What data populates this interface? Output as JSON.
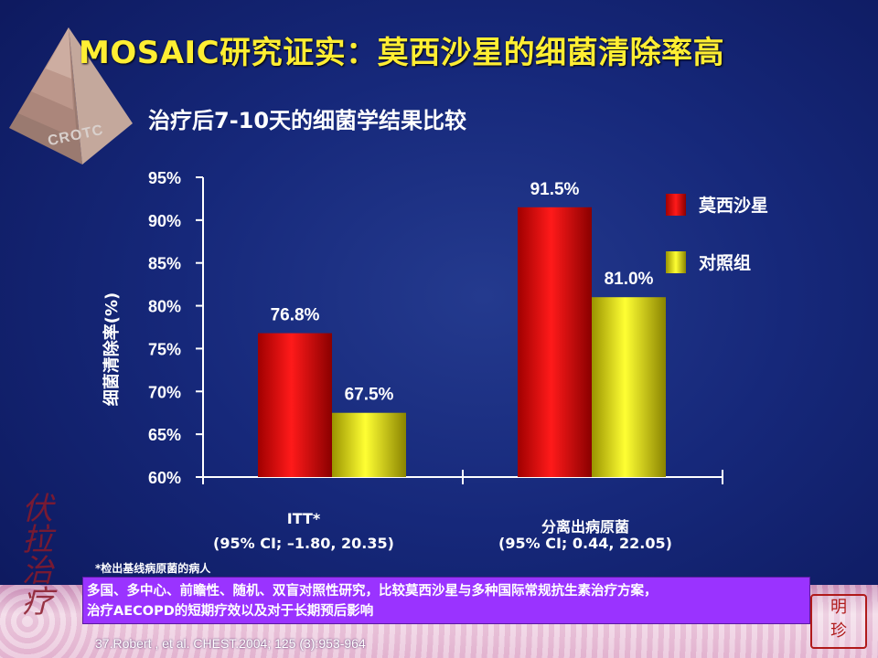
{
  "slide": {
    "title": "MOSAIC研究证实：莫西沙星的细菌清除率高",
    "logo_text": "CROTC",
    "footnote": "*检出基线病原菌的病人",
    "callout_line1": "多国、多中心、前瞻性、随机、双盲对照性研究，比较莫西沙星与多种国际常规抗生素治疗方案，",
    "callout_line2": "治疗AECOPD的短期疗效以及对于长期预后影响",
    "reference": "37.Robert , et al. CHEST.2004; 125 (3):953-964",
    "calligraphy": "伏\n拉\n治\n疗",
    "seal": "明\n珍"
  },
  "legend": {
    "series1": "莫西沙星",
    "series2": "对照组"
  },
  "colors": {
    "series1": "#e00000",
    "series2": "#e8e000",
    "title": "#ffee33",
    "callout": "#9a33ff"
  },
  "chart_data": {
    "type": "bar",
    "title": "治疗后7-10天的细菌学结果比较",
    "ylabel": "细菌清除率(%)",
    "ylim": [
      60,
      95
    ],
    "yticks": [
      "60%",
      "65%",
      "70%",
      "75%",
      "80%",
      "85%",
      "90%",
      "95%"
    ],
    "categories": [
      "ITT*",
      "分离出病原菌"
    ],
    "category_notes": [
      "(95% CI; –1.80, 20.35)",
      "(95% CI; 0.44, 22.05)"
    ],
    "series": [
      {
        "name": "莫西沙星",
        "values": [
          76.8,
          91.5
        ],
        "labels": [
          "76.8%",
          "91.5%"
        ]
      },
      {
        "name": "对照组",
        "values": [
          67.5,
          81.0
        ],
        "labels": [
          "67.5%",
          "81.0%"
        ]
      }
    ]
  }
}
